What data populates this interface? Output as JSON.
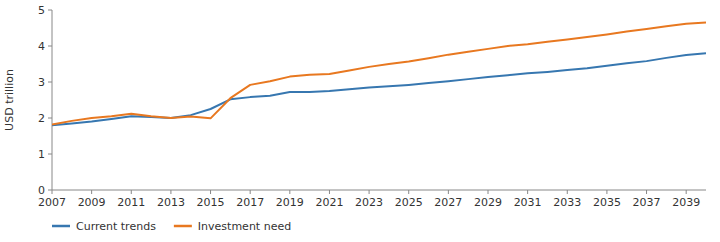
{
  "chart_data": {
    "type": "line",
    "x": [
      2007,
      2008,
      2009,
      2010,
      2011,
      2012,
      2013,
      2014,
      2015,
      2016,
      2017,
      2018,
      2019,
      2020,
      2021,
      2022,
      2023,
      2024,
      2025,
      2026,
      2027,
      2028,
      2029,
      2030,
      2031,
      2032,
      2033,
      2034,
      2035,
      2036,
      2037,
      2038,
      2039,
      2040
    ],
    "series": [
      {
        "name": "Current trends",
        "color": "#3777b0",
        "values": [
          1.8,
          1.85,
          1.9,
          1.97,
          2.05,
          2.03,
          2.0,
          2.08,
          2.25,
          2.52,
          2.58,
          2.62,
          2.72,
          2.72,
          2.75,
          2.8,
          2.85,
          2.88,
          2.92,
          2.97,
          3.02,
          3.08,
          3.14,
          3.19,
          3.24,
          3.28,
          3.33,
          3.38,
          3.45,
          3.52,
          3.58,
          3.67,
          3.75,
          3.8
        ]
      },
      {
        "name": "Investment need",
        "color": "#e87820",
        "values": [
          1.82,
          1.92,
          2.0,
          2.05,
          2.12,
          2.05,
          2.0,
          2.04,
          1.99,
          2.55,
          2.92,
          3.02,
          3.15,
          3.2,
          3.22,
          3.32,
          3.42,
          3.5,
          3.57,
          3.66,
          3.76,
          3.84,
          3.92,
          4.0,
          4.05,
          4.12,
          4.18,
          4.25,
          4.32,
          4.4,
          4.47,
          4.55,
          4.62,
          4.65
        ]
      }
    ],
    "ylabel": "USD trillion",
    "xlim": [
      2007,
      2040
    ],
    "ylim": [
      0,
      5
    ],
    "xticks": [
      2007,
      2009,
      2011,
      2013,
      2015,
      2017,
      2019,
      2021,
      2023,
      2025,
      2027,
      2029,
      2031,
      2033,
      2035,
      2037,
      2039
    ],
    "yticks": [
      0,
      1,
      2,
      3,
      4,
      5
    ],
    "grid": false,
    "legend": "bottom"
  }
}
